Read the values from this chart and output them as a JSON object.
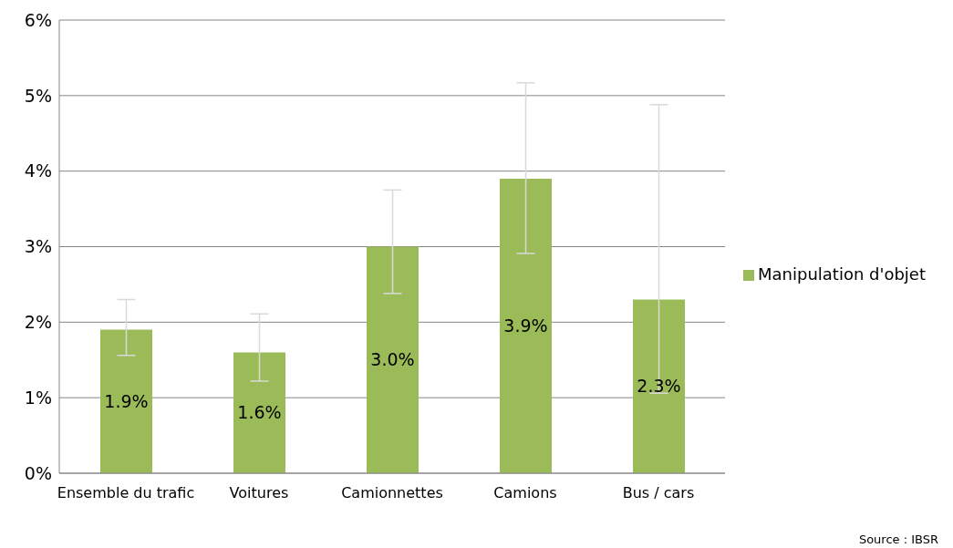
{
  "chart_data": {
    "type": "bar",
    "categories": [
      "Ensemble du trafic",
      "Voitures",
      "Camionnettes",
      "Camions",
      "Bus / cars"
    ],
    "series": [
      {
        "name": "Manipulation d'objet",
        "color": "#9bbb59",
        "values": [
          1.9,
          1.6,
          3.0,
          3.9,
          2.3
        ],
        "errors": [
          [
            1.56,
            2.3
          ],
          [
            1.22,
            2.11
          ],
          [
            2.38,
            3.75
          ],
          [
            2.91,
            5.17
          ],
          [
            1.06,
            4.88
          ]
        ],
        "value_labels": [
          "1.9%",
          "1.6%",
          "3.0%",
          "3.9%",
          "2.3%"
        ]
      }
    ],
    "ylim": [
      0,
      6
    ],
    "yticks": [
      {
        "value": 0,
        "label": "0%"
      },
      {
        "value": 1,
        "label": "1%"
      },
      {
        "value": 2,
        "label": "2%"
      },
      {
        "value": 3,
        "label": "3%"
      },
      {
        "value": 4,
        "label": "4%"
      },
      {
        "value": 5,
        "label": "5%"
      },
      {
        "value": 6,
        "label": "6%"
      }
    ],
    "grid": "y",
    "legend": "right",
    "annotations": [
      "Source : IBSR"
    ]
  }
}
